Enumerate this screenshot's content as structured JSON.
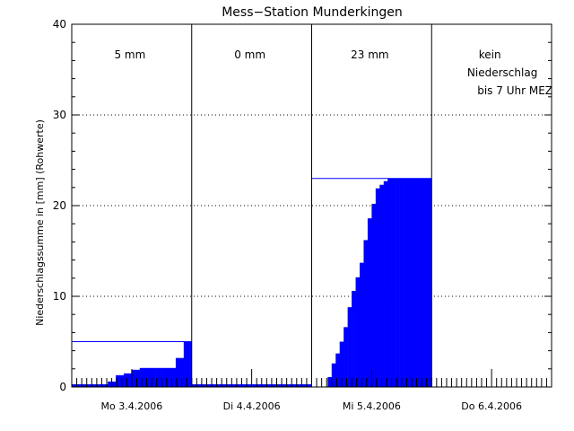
{
  "chart_data": {
    "type": "bar",
    "title": "Mess−Station Munderkingen",
    "ylabel": "Niederschlagssumme in [mm] (Rohwerte)",
    "xlabel": "",
    "ylim": [
      0,
      40
    ],
    "yticks": [
      0,
      10,
      20,
      30,
      40
    ],
    "grid": true,
    "days": [
      {
        "label": "Mo 3.4.2006",
        "annotation": [
          "5 mm"
        ],
        "total": 5,
        "values": [
          0.3,
          0.3,
          0.3,
          0.3,
          0.3,
          0.3,
          0.3,
          0.3,
          0.3,
          0.6,
          0.6,
          1.3,
          1.3,
          1.5,
          1.5,
          1.9,
          1.9,
          2.1,
          2.1,
          2.1,
          2.1,
          2.1,
          2.1,
          2.1,
          2.1,
          2.1,
          3.2,
          3.2,
          5.0,
          5.0
        ]
      },
      {
        "label": "Di 4.4.2006",
        "annotation": [
          "0 mm"
        ],
        "total": 0,
        "values": [
          0.3,
          0.3,
          0.3,
          0.3,
          0.3,
          0.3,
          0.3,
          0.3,
          0.3,
          0.3,
          0.3,
          0.3,
          0.3,
          0.3,
          0.3,
          0.3,
          0.3,
          0.3,
          0.3,
          0.3,
          0.3,
          0.3,
          0.3,
          0.3,
          0.3,
          0.3,
          0.3,
          0.3,
          0.3,
          0.3
        ]
      },
      {
        "label": "Mi 5.4.2006",
        "annotation": [
          "23 mm"
        ],
        "total": 23,
        "values": [
          0.0,
          0.0,
          0.0,
          0.0,
          1.1,
          2.6,
          3.7,
          5.0,
          6.6,
          8.8,
          10.6,
          12.1,
          13.7,
          16.2,
          18.6,
          20.2,
          21.9,
          22.3,
          22.7,
          23.0,
          23.0,
          23.0,
          23.0,
          23.0,
          23.0,
          23.0,
          23.0,
          23.0,
          23.0,
          23.0
        ]
      },
      {
        "label": "Do 6.4.2006",
        "annotation": [
          "kein",
          "Niederschlag",
          "bis 7 Uhr MEZ"
        ],
        "total": null,
        "values": []
      }
    ],
    "colors": {
      "bars": "#0000ff",
      "axis": "#000000",
      "background": "#ffffff",
      "total_line": "#0000ff"
    }
  }
}
